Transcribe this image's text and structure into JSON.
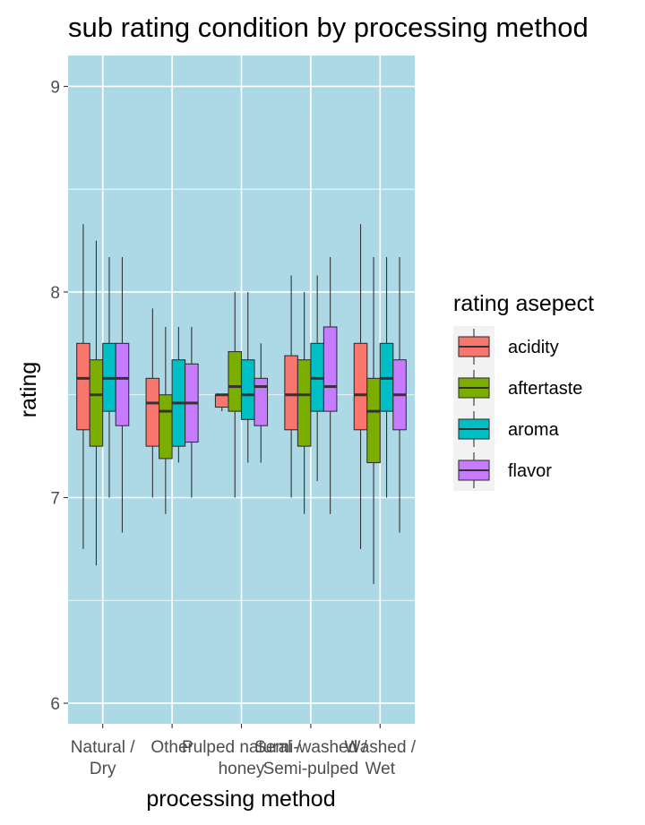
{
  "chart_data": {
    "type": "boxplot",
    "title": "sub rating condition by processing method",
    "xlabel": "processing method",
    "ylabel": "rating",
    "ylim": [
      5.9,
      9.15
    ],
    "yticks": [
      6,
      7,
      8,
      9
    ],
    "grid": true,
    "background": "#add8e6",
    "categories": [
      {
        "label": [
          "Natural /",
          "Dry"
        ]
      },
      {
        "label": [
          "Other"
        ]
      },
      {
        "label": [
          "Pulped natural /",
          "honey"
        ]
      },
      {
        "label": [
          "Semi-washed /",
          "Semi-pulped"
        ]
      },
      {
        "label": [
          "Washed /",
          "Wet"
        ]
      }
    ],
    "legend": {
      "title": "rating asepect",
      "position": "right",
      "entries": [
        {
          "name": "acidity",
          "color": "#F8766D"
        },
        {
          "name": "aftertaste",
          "color": "#7CAE00"
        },
        {
          "name": "aroma",
          "color": "#00BFC4"
        },
        {
          "name": "flavor",
          "color": "#C77CFF"
        }
      ]
    },
    "series": [
      {
        "name": "acidity",
        "color": "#F8766D",
        "boxes": [
          {
            "min": 6.75,
            "q1": 7.33,
            "median": 7.58,
            "q3": 7.75,
            "max": 8.33
          },
          {
            "min": 7.0,
            "q1": 7.25,
            "median": 7.46,
            "q3": 7.58,
            "max": 7.92
          },
          {
            "min": 7.42,
            "q1": 7.44,
            "median": 7.5,
            "q3": 7.5,
            "max": 7.5
          },
          {
            "min": 7.0,
            "q1": 7.33,
            "median": 7.5,
            "q3": 7.69,
            "max": 8.08
          },
          {
            "min": 6.75,
            "q1": 7.33,
            "median": 7.5,
            "q3": 7.75,
            "max": 8.33
          }
        ]
      },
      {
        "name": "aftertaste",
        "color": "#7CAE00",
        "boxes": [
          {
            "min": 6.67,
            "q1": 7.25,
            "median": 7.5,
            "q3": 7.67,
            "max": 8.25
          },
          {
            "min": 6.92,
            "q1": 7.19,
            "median": 7.42,
            "q3": 7.5,
            "max": 7.83
          },
          {
            "min": 7.0,
            "q1": 7.42,
            "median": 7.54,
            "q3": 7.71,
            "max": 8.0
          },
          {
            "min": 6.92,
            "q1": 7.25,
            "median": 7.5,
            "q3": 7.67,
            "max": 8.0
          },
          {
            "min": 6.58,
            "q1": 7.17,
            "median": 7.42,
            "q3": 7.58,
            "max": 8.17
          }
        ]
      },
      {
        "name": "aroma",
        "color": "#00BFC4",
        "boxes": [
          {
            "min": 7.0,
            "q1": 7.42,
            "median": 7.58,
            "q3": 7.75,
            "max": 8.17
          },
          {
            "min": 7.17,
            "q1": 7.25,
            "median": 7.46,
            "q3": 7.67,
            "max": 7.83
          },
          {
            "min": 7.17,
            "q1": 7.38,
            "median": 7.5,
            "q3": 7.67,
            "max": 8.0
          },
          {
            "min": 7.08,
            "q1": 7.42,
            "median": 7.58,
            "q3": 7.75,
            "max": 8.08
          },
          {
            "min": 7.0,
            "q1": 7.42,
            "median": 7.58,
            "q3": 7.75,
            "max": 8.17
          }
        ]
      },
      {
        "name": "flavor",
        "color": "#C77CFF",
        "boxes": [
          {
            "min": 6.83,
            "q1": 7.35,
            "median": 7.58,
            "q3": 7.75,
            "max": 8.17
          },
          {
            "min": 7.0,
            "q1": 7.27,
            "median": 7.46,
            "q3": 7.65,
            "max": 7.83
          },
          {
            "min": 7.17,
            "q1": 7.35,
            "median": 7.54,
            "q3": 7.58,
            "max": 7.75
          },
          {
            "min": 6.92,
            "q1": 7.42,
            "median": 7.54,
            "q3": 7.83,
            "max": 8.17
          },
          {
            "min": 6.83,
            "q1": 7.33,
            "median": 7.5,
            "q3": 7.67,
            "max": 8.17
          }
        ]
      }
    ]
  }
}
